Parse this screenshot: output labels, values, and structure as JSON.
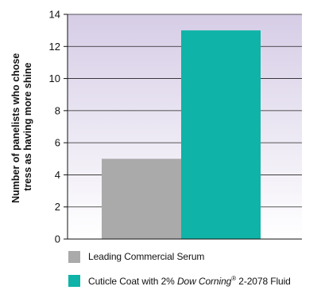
{
  "top_note": "",
  "chart_data": {
    "type": "bar",
    "title": "",
    "xlabel": "",
    "ylabel_lines": [
      "Number of panelists who chose",
      "tress as having more shine"
    ],
    "ylim": [
      0,
      14
    ],
    "yticks": [
      "0",
      "2",
      "4",
      "6",
      "8",
      "10",
      "12",
      "14"
    ],
    "grid": true,
    "background_gradient": [
      "#d6cde6",
      "#ffffff"
    ],
    "legend_position": "bottom",
    "series": [
      {
        "name": "Leading Commercial Serum",
        "value": 5,
        "color": "#aaaaaa"
      },
      {
        "name": "Cuticle Coat with 2% Dow Corning® 2-2078 Fluid",
        "value": 13,
        "color": "#0fb3a7"
      }
    ]
  },
  "legend": [
    {
      "label": "Leading Commercial Serum"
    },
    {
      "label_prefix": "Cuticle Coat with 2% ",
      "label_italic": "Dow Corning",
      "label_sup": "®",
      "label_suffix": " 2-2078 Fluid"
    }
  ]
}
